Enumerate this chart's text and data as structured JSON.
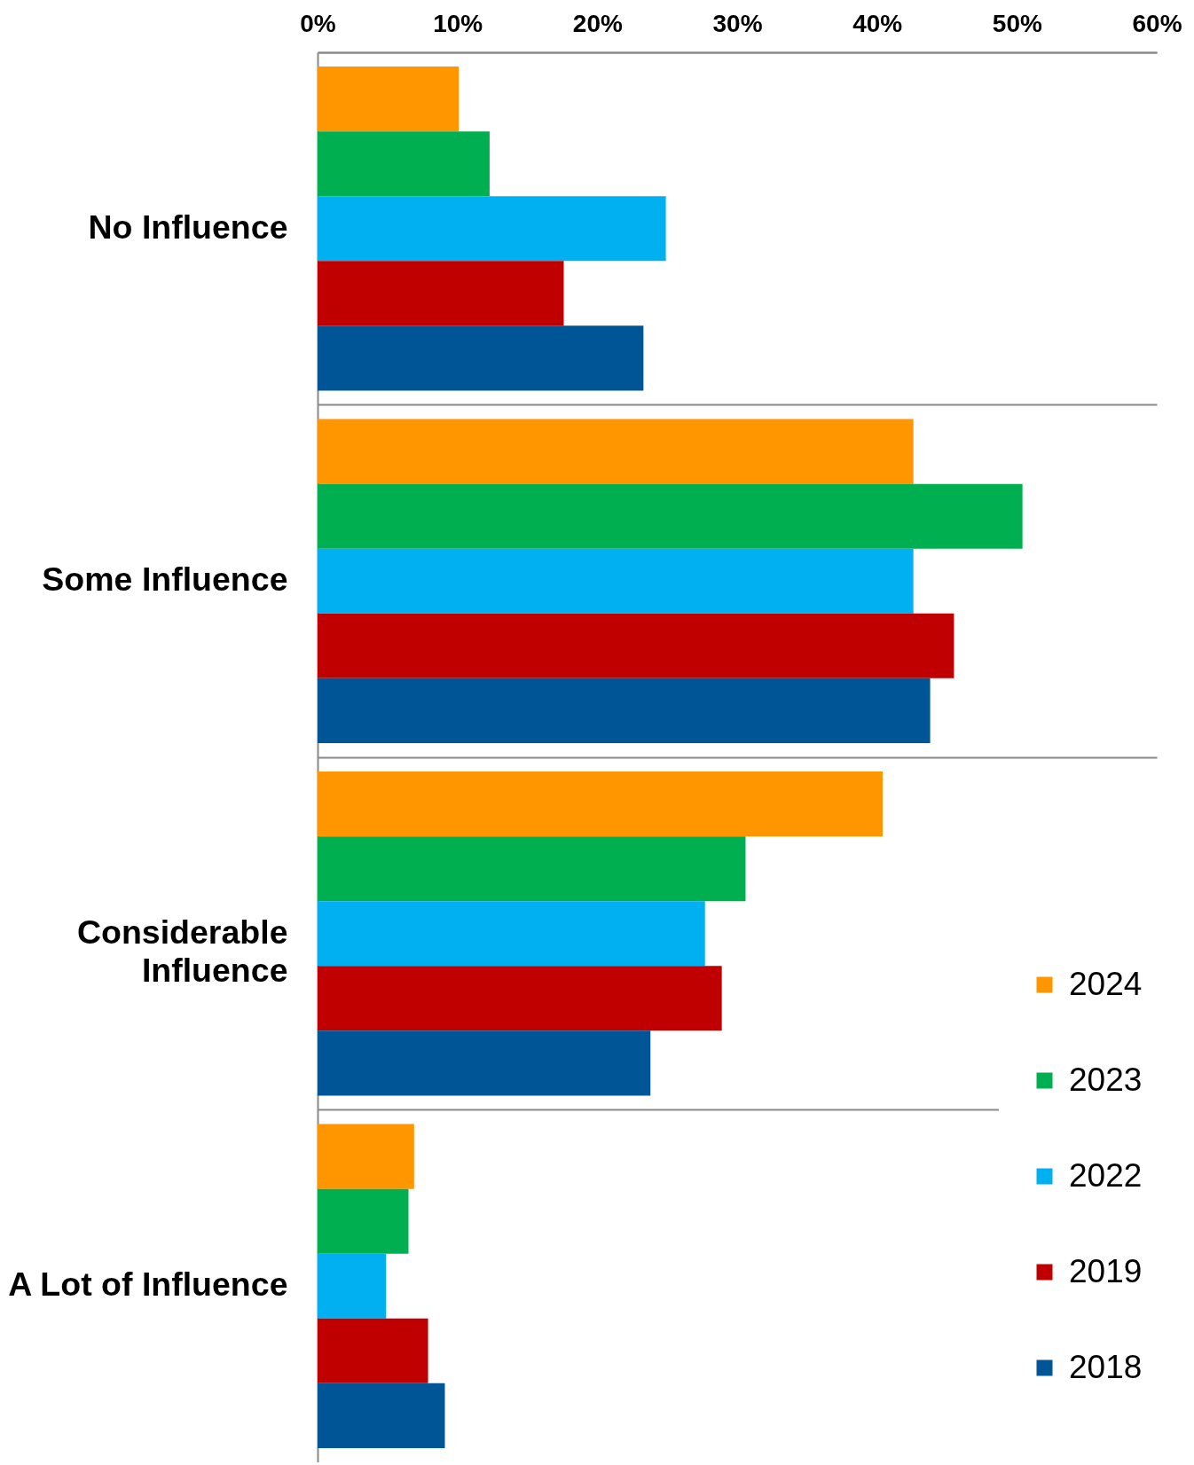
{
  "chart_data": {
    "type": "bar",
    "orientation": "horizontal",
    "categories": [
      "No Influence",
      "Some Influence",
      "Considerable Influence",
      "A Lot of Influence"
    ],
    "series": [
      {
        "name": "2024",
        "color": "#ff9600",
        "values": [
          10.1,
          42.6,
          40.4,
          6.9
        ]
      },
      {
        "name": "2023",
        "color": "#00b050",
        "values": [
          12.3,
          50.4,
          30.6,
          6.5
        ]
      },
      {
        "name": "2022",
        "color": "#00b0f0",
        "values": [
          24.9,
          42.6,
          27.7,
          4.9
        ]
      },
      {
        "name": "2019",
        "color": "#c00000",
        "values": [
          17.6,
          45.5,
          28.9,
          7.9
        ]
      },
      {
        "name": "2018",
        "color": "#005596",
        "values": [
          23.3,
          43.8,
          23.8,
          9.1
        ]
      }
    ],
    "xlim": [
      0,
      60
    ],
    "xticks": [
      {
        "value": 0,
        "label": "0%"
      },
      {
        "value": 10,
        "label": "10%"
      },
      {
        "value": 20,
        "label": "20%"
      },
      {
        "value": 30,
        "label": "30%"
      },
      {
        "value": 40,
        "label": "40%"
      },
      {
        "value": 50,
        "label": "50%"
      },
      {
        "value": 60,
        "label": "60%"
      }
    ],
    "grid": "y",
    "legend": "bottom right"
  }
}
